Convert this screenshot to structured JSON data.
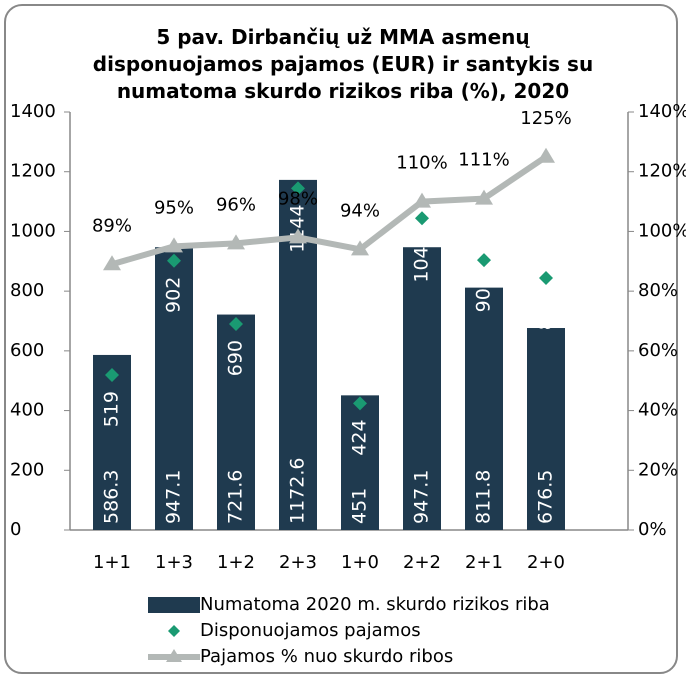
{
  "chart_data": {
    "type": "bar",
    "title": "5 pav. Dirbančių už MMA asmenų\ndisponuojamos pajamos (EUR) ir santykis su\nnumatoma skurdo rizikos riba (%), 2020",
    "categories": [
      "1+1",
      "1+3",
      "1+2",
      "2+3",
      "1+0",
      "2+2",
      "2+1",
      "2+0"
    ],
    "series": [
      {
        "name": "Numatoma 2020 m. skurdo rizikos riba",
        "type": "bar",
        "color": "#1f3a4f",
        "values": [
          586.3,
          947.1,
          721.6,
          1172.6,
          451,
          947.1,
          811.8,
          676.5
        ]
      },
      {
        "name": "Disponuojamos pajamos",
        "type": "scatter",
        "color": "#1a9a72",
        "values": [
          519,
          902,
          690,
          1144,
          424,
          1044,
          904,
          844
        ]
      },
      {
        "name": "Pajamos % nuo skurdo ribos",
        "type": "line",
        "axis": "y2",
        "color": "#b3b8b6",
        "values": [
          89,
          95,
          96,
          98,
          94,
          110,
          111,
          125
        ],
        "value_labels": [
          "89%",
          "95%",
          "96%",
          "98%",
          "94%",
          "110%",
          "111%",
          "125%"
        ]
      }
    ],
    "ylim": [
      0,
      1400
    ],
    "yticks": [
      0,
      200,
      400,
      600,
      800,
      1000,
      1200,
      1400
    ],
    "y2lim": [
      0,
      140
    ],
    "y2ticks": [
      {
        "value": 0,
        "label": "0%"
      },
      {
        "value": 20,
        "label": "20%"
      },
      {
        "value": 40,
        "label": "40%"
      },
      {
        "value": 60,
        "label": "60%"
      },
      {
        "value": 80,
        "label": "80%"
      },
      {
        "value": 100,
        "label": "100%"
      },
      {
        "value": 120,
        "label": "120%"
      },
      {
        "value": 140,
        "label": "140%"
      }
    ],
    "grid": false
  }
}
